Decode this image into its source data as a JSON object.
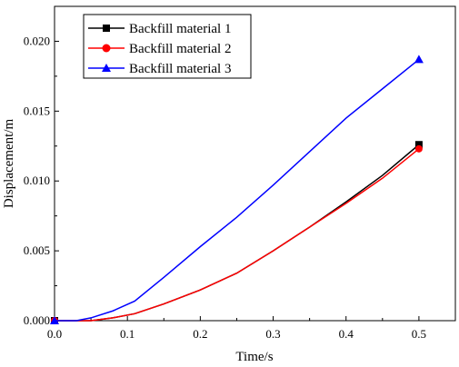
{
  "chart_data": {
    "type": "line",
    "xlabel": "Time/s",
    "ylabel": "Displacement/m",
    "xlim": [
      0.0,
      0.55
    ],
    "ylim": [
      0.0,
      0.0225
    ],
    "xticks": [
      "0.0",
      "0.1",
      "0.2",
      "0.3",
      "0.4",
      "0.5"
    ],
    "yticks": [
      "0.000",
      "0.005",
      "0.010",
      "0.015",
      "0.020"
    ],
    "legend_position": "top-left",
    "grid": false,
    "series": [
      {
        "name": "Backfill material 1",
        "color": "#000000",
        "marker": "square",
        "x": [
          0.0,
          0.03,
          0.05,
          0.08,
          0.11,
          0.15,
          0.2,
          0.25,
          0.3,
          0.35,
          0.4,
          0.45,
          0.5
        ],
        "y": [
          0.0,
          0.0,
          0.0,
          0.0002,
          0.0005,
          0.0012,
          0.0022,
          0.0034,
          0.005,
          0.0067,
          0.0085,
          0.0104,
          0.0126
        ]
      },
      {
        "name": "Backfill material 2",
        "color": "#ff0000",
        "marker": "circle",
        "x": [
          0.0,
          0.03,
          0.05,
          0.08,
          0.11,
          0.15,
          0.2,
          0.25,
          0.3,
          0.35,
          0.4,
          0.45,
          0.5
        ],
        "y": [
          0.0,
          0.0,
          0.0,
          0.0002,
          0.0005,
          0.0012,
          0.0022,
          0.0034,
          0.005,
          0.0067,
          0.0084,
          0.0102,
          0.0123
        ]
      },
      {
        "name": "Backfill material 3",
        "color": "#0000ff",
        "marker": "triangle",
        "x": [
          0.0,
          0.03,
          0.05,
          0.08,
          0.11,
          0.15,
          0.2,
          0.25,
          0.3,
          0.35,
          0.4,
          0.45,
          0.5
        ],
        "y": [
          0.0,
          0.0,
          0.0002,
          0.0007,
          0.0014,
          0.0031,
          0.0053,
          0.0074,
          0.0097,
          0.0121,
          0.0145,
          0.0166,
          0.0187
        ]
      }
    ]
  }
}
